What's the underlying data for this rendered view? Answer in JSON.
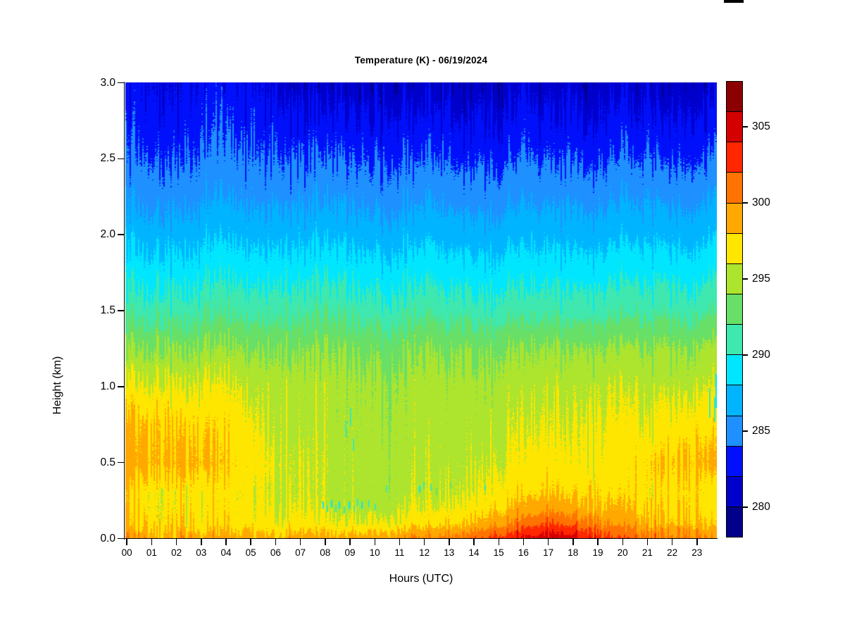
{
  "figure": {
    "background": "#ffffff",
    "artifact_mark_color": "#000000"
  },
  "chart_data": {
    "type": "heatmap",
    "title": "Temperature (K) - 06/19/2024",
    "xlabel": "Hours (UTC)",
    "ylabel": "Height (km)",
    "xlim": [
      0,
      24
    ],
    "ylim": [
      0,
      3
    ],
    "x_tick_labels": [
      "00",
      "01",
      "02",
      "03",
      "04",
      "05",
      "06",
      "07",
      "08",
      "09",
      "10",
      "11",
      "12",
      "13",
      "14",
      "15",
      "16",
      "17",
      "18",
      "19",
      "20",
      "21",
      "22",
      "23"
    ],
    "y_tick_labels": [
      "3.0",
      "2.5",
      "2.0",
      "1.5",
      "1.0",
      "0.5",
      "0.0"
    ],
    "grid": false,
    "colorbar": {
      "position": "right",
      "breaks_start": 278,
      "break_step": 2,
      "breaks_end": 308,
      "tick_values": [
        305,
        300,
        295,
        290,
        285,
        280
      ],
      "tick_labels": [
        "305",
        "300",
        "295",
        "290",
        "285",
        "280"
      ],
      "colors": [
        "#00008B",
        "#0000CD",
        "#0010FA",
        "#1E90FF",
        "#00B4FF",
        "#00E6FF",
        "#3EE8AE",
        "#68DF66",
        "#ACE42E",
        "#FFE600",
        "#FFA800",
        "#FF7300",
        "#FF2600",
        "#D40000",
        "#8B0000"
      ],
      "under_color": "#000066"
    },
    "heights_km": [
      0,
      0.1,
      0.2,
      0.3,
      0.5,
      0.75,
      1.0,
      1.25,
      1.5,
      1.75,
      2.0,
      2.25,
      2.5,
      2.75,
      3.0
    ],
    "hours": [
      0,
      1,
      2,
      3,
      4,
      5,
      6,
      7,
      8,
      9,
      10,
      11,
      12,
      13,
      14,
      15,
      16,
      17,
      18,
      19,
      20,
      21,
      22,
      23,
      24
    ],
    "temperature_K": [
      [
        299.2,
        297.6,
        297.1,
        297.0,
        298.7,
        298.1,
        296.4,
        294.0,
        291.2,
        289.2,
        287.2,
        285.4,
        284.1,
        283.1,
        282.3
      ],
      [
        299.2,
        297.5,
        297.1,
        297.0,
        298.8,
        298.3,
        296.5,
        294.1,
        291.2,
        289.2,
        287.2,
        285.4,
        284.1,
        283.1,
        282.3
      ],
      [
        299.0,
        297.4,
        297.0,
        296.9,
        298.6,
        297.9,
        296.3,
        294.0,
        291.2,
        289.2,
        287.2,
        285.4,
        284.1,
        283.1,
        282.3
      ],
      [
        298.9,
        297.3,
        296.9,
        296.8,
        298.4,
        297.6,
        296.2,
        293.9,
        291.2,
        289.2,
        287.2,
        285.4,
        284.1,
        283.1,
        282.2
      ],
      [
        298.8,
        297.2,
        296.8,
        296.6,
        297.7,
        297.0,
        296.0,
        293.9,
        291.2,
        289.2,
        287.2,
        285.4,
        284.1,
        283.1,
        282.2
      ],
      [
        298.6,
        297.0,
        296.5,
        296.3,
        296.9,
        296.4,
        295.6,
        293.8,
        291.2,
        289.2,
        287.2,
        285.4,
        284.1,
        283.1,
        282.1
      ],
      [
        298.5,
        296.7,
        296.1,
        295.8,
        296.1,
        295.6,
        295.1,
        293.7,
        291.2,
        289.2,
        287.2,
        285.4,
        284.0,
        282.8,
        281.7
      ],
      [
        298.6,
        296.5,
        295.8,
        295.6,
        295.6,
        295.2,
        294.9,
        293.6,
        291.2,
        289.2,
        287.2,
        285.4,
        283.9,
        282.4,
        281.0
      ],
      [
        298.8,
        296.4,
        295.6,
        295.3,
        295.3,
        295.0,
        294.8,
        293.6,
        291.2,
        289.2,
        287.2,
        285.4,
        283.9,
        282.4,
        281.0
      ],
      [
        299.1,
        296.4,
        295.5,
        295.2,
        295.1,
        294.9,
        294.7,
        293.6,
        291.2,
        289.2,
        287.2,
        285.4,
        283.9,
        282.4,
        281.0
      ],
      [
        299.4,
        296.5,
        295.5,
        295.2,
        295.1,
        294.9,
        294.7,
        293.6,
        291.2,
        289.2,
        287.2,
        285.4,
        283.9,
        282.4,
        281.0
      ],
      [
        299.8,
        296.7,
        295.7,
        295.3,
        295.2,
        294.9,
        294.7,
        293.6,
        291.2,
        289.2,
        287.2,
        285.4,
        283.9,
        282.4,
        281.0
      ],
      [
        300.4,
        297.3,
        296.1,
        295.6,
        295.4,
        295.0,
        294.8,
        293.7,
        291.2,
        289.2,
        287.2,
        285.4,
        283.9,
        282.4,
        281.0
      ],
      [
        301.0,
        297.9,
        296.6,
        296.0,
        295.6,
        295.2,
        294.9,
        293.7,
        291.2,
        289.2,
        287.2,
        285.4,
        283.9,
        282.4,
        281.0
      ],
      [
        302.0,
        298.7,
        297.2,
        296.5,
        295.9,
        295.4,
        295.0,
        293.8,
        291.2,
        289.2,
        287.2,
        285.4,
        283.9,
        282.4,
        281.0
      ],
      [
        303.0,
        299.6,
        297.9,
        297.0,
        296.2,
        295.7,
        295.2,
        293.9,
        291.2,
        289.2,
        287.2,
        285.4,
        283.9,
        282.5,
        281.2
      ],
      [
        304.0,
        300.6,
        298.6,
        297.5,
        296.5,
        295.9,
        295.3,
        294.0,
        291.2,
        289.2,
        287.2,
        285.4,
        283.9,
        282.5,
        281.2
      ],
      [
        305.4,
        302.1,
        299.4,
        298.0,
        296.8,
        296.1,
        295.5,
        294.1,
        291.2,
        289.2,
        287.2,
        285.4,
        283.7,
        282.2,
        280.9
      ],
      [
        305.1,
        301.4,
        299.0,
        297.8,
        296.7,
        296.1,
        295.5,
        294.1,
        291.2,
        289.2,
        287.2,
        285.4,
        283.7,
        282.2,
        280.9
      ],
      [
        302.7,
        299.9,
        298.1,
        297.3,
        296.6,
        296.2,
        295.7,
        294.1,
        291.2,
        289.2,
        287.2,
        285.4,
        283.7,
        282.2,
        280.9
      ],
      [
        301.5,
        299.0,
        297.7,
        297.1,
        296.5,
        296.0,
        295.6,
        294.1,
        291.2,
        289.2,
        287.2,
        285.4,
        283.7,
        282.2,
        280.9
      ],
      [
        300.9,
        298.5,
        297.5,
        297.0,
        297.3,
        296.1,
        295.3,
        294.0,
        291.2,
        289.2,
        287.2,
        285.4,
        283.7,
        282.2,
        280.9
      ],
      [
        300.5,
        298.2,
        297.3,
        296.9,
        298.0,
        296.7,
        295.4,
        294.0,
        291.2,
        289.2,
        287.2,
        285.4,
        283.7,
        282.2,
        280.9
      ],
      [
        300.3,
        298.0,
        297.2,
        296.9,
        298.2,
        297.1,
        295.6,
        294.1,
        291.2,
        289.2,
        287.2,
        285.4,
        283.7,
        282.2,
        280.9
      ],
      [
        300.1,
        297.9,
        297.1,
        296.9,
        298.3,
        297.3,
        295.7,
        294.1,
        291.2,
        289.2,
        287.2,
        285.4,
        283.7,
        282.2,
        280.9
      ]
    ],
    "artifact_speckles": [
      {
        "t": 7.95,
        "h": 0.22,
        "v": 289.5
      },
      {
        "t": 8.12,
        "h": 0.2,
        "v": 290.5
      },
      {
        "t": 8.3,
        "h": 0.23,
        "v": 289.2
      },
      {
        "t": 8.46,
        "h": 0.2,
        "v": 291.0
      },
      {
        "t": 8.62,
        "h": 0.22,
        "v": 289.6
      },
      {
        "t": 8.8,
        "h": 0.19,
        "v": 290.2
      },
      {
        "t": 9.0,
        "h": 0.22,
        "v": 289.3
      },
      {
        "t": 9.2,
        "h": 0.2,
        "v": 290.8
      },
      {
        "t": 9.34,
        "h": 0.24,
        "v": 291.4
      },
      {
        "t": 9.52,
        "h": 0.22,
        "v": 289.8
      },
      {
        "t": 9.8,
        "h": 0.23,
        "v": 290.4
      },
      {
        "t": 10.05,
        "h": 0.21,
        "v": 291.2
      },
      {
        "t": 8.85,
        "h": 0.72,
        "v": 290.8,
        "len": 0.1
      },
      {
        "t": 9.05,
        "h": 0.8,
        "v": 291.5,
        "len": 0.12
      },
      {
        "t": 9.18,
        "h": 0.62,
        "v": 290.2,
        "len": 0.08
      },
      {
        "t": 10.5,
        "h": 0.33,
        "v": 290.0
      },
      {
        "t": 11.85,
        "h": 0.33,
        "v": 289.0
      },
      {
        "t": 12.02,
        "h": 0.35,
        "v": 290.6
      },
      {
        "t": 12.3,
        "h": 0.34,
        "v": 291.6
      },
      {
        "t": 12.52,
        "h": 0.31,
        "v": 292.4
      },
      {
        "t": 13.1,
        "h": 0.35,
        "v": 292.0
      },
      {
        "t": 14.5,
        "h": 0.34,
        "v": 291.0
      },
      {
        "t": 23.55,
        "h": 0.9,
        "v": 290.0,
        "len": 0.2
      },
      {
        "t": 23.75,
        "h": 0.85,
        "v": 290.8,
        "len": 0.16
      },
      {
        "t": 23.9,
        "h": 0.97,
        "v": 289.5,
        "len": 0.22
      }
    ]
  }
}
